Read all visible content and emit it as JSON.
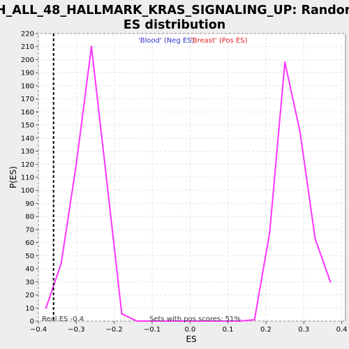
{
  "chart_data": {
    "type": "line",
    "title_line1": "H_ALL_48_HALLMARK_KRAS_SIGNALING_UP: Random",
    "title_line2": "ES distribution",
    "xlabel": "ES",
    "ylabel": "P(ES)",
    "xlim": [
      -0.4,
      0.41
    ],
    "ylim": [
      0,
      220
    ],
    "x_ticks": [
      -0.4,
      -0.3,
      -0.2,
      -0.1,
      0.0,
      0.1,
      0.2,
      0.3,
      0.4
    ],
    "x_tick_labels": [
      "−0.4",
      "−0.3",
      "−0.2",
      "−0.1",
      "0.0",
      "0.1",
      "0.2",
      "0.3",
      "0.4"
    ],
    "y_ticks": [
      0,
      10,
      20,
      30,
      40,
      50,
      60,
      70,
      80,
      90,
      100,
      110,
      120,
      130,
      140,
      150,
      160,
      170,
      180,
      190,
      200,
      210,
      220
    ],
    "grid": true,
    "legend": {
      "placement": "top-center",
      "entries": [
        {
          "label": "'Blood' (Neg ES)",
          "color": "#3333cc"
        },
        {
          "label": "'Breast' (Pos ES)",
          "color": "#dd2222"
        }
      ]
    },
    "series": [
      {
        "color": "#ff33ff",
        "x": [
          -0.38,
          -0.34,
          -0.3,
          -0.26,
          -0.22,
          -0.18,
          -0.14,
          -0.1,
          -0.06,
          -0.02,
          0.02,
          0.06,
          0.1,
          0.13,
          0.17,
          0.21,
          0.25,
          0.29,
          0.33,
          0.37
        ],
        "y": [
          10,
          44,
          120,
          210,
          108,
          5.5,
          0,
          0,
          0,
          0,
          0,
          0,
          0,
          0,
          1,
          68,
          198,
          145,
          63,
          30
        ]
      }
    ],
    "real_es": {
      "value": -0.36,
      "label": "Real ES -0.4",
      "color": "#000000"
    },
    "annotation": "Sets with pos scores: 51%"
  }
}
